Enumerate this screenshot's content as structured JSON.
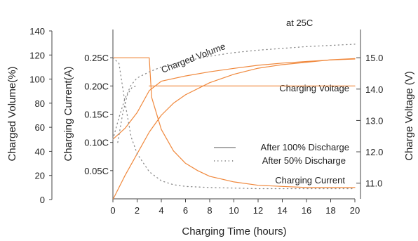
{
  "chart_data": {
    "type": "line",
    "annotation_text": "at 25C",
    "x_axis": {
      "label": "Charging Time (hours)",
      "ticks": [
        0,
        2,
        4,
        6,
        8,
        10,
        12,
        14,
        16,
        18,
        20
      ],
      "range": [
        0,
        20
      ]
    },
    "y_axes": {
      "charged_volume": {
        "label": "Charged Volume(%)",
        "ticks": [
          0,
          20,
          40,
          60,
          80,
          100,
          120,
          140
        ],
        "range": [
          0,
          140
        ]
      },
      "charging_current": {
        "label": "Charging Current(A)",
        "ticks": [
          "0.05C",
          "0.10C",
          "0.15C",
          "0.20C",
          "0.25C"
        ],
        "tick_values": [
          0.05,
          0.1,
          0.15,
          0.2,
          0.25
        ],
        "range": [
          0,
          0.3
        ]
      },
      "charge_voltage": {
        "label": "Charge Voltage (V)",
        "ticks": [
          "11.0",
          "12.0",
          "13.0",
          "14.0",
          "15.0"
        ],
        "tick_values": [
          11.0,
          12.0,
          13.0,
          14.0,
          15.0
        ],
        "range": [
          10.5,
          15.9
        ]
      }
    },
    "curve_labels": {
      "volume": "Charged Volume",
      "voltage": "Charging Voltage",
      "current": "Charging Current"
    },
    "legend": {
      "placement": "lower-right",
      "entries": [
        "After 100% Discharge",
        "After 50% Discharge"
      ]
    },
    "colors": {
      "series": "#f0883c",
      "dotted": "#8a8a8a",
      "axis": "#444444"
    },
    "series": [
      {
        "name": "After 100% Discharge",
        "quantity": "Charged Volume",
        "axis": "charged_volume",
        "style": "solid",
        "x": [
          0,
          1,
          2,
          3,
          4,
          5,
          6,
          8,
          10,
          12,
          14,
          16,
          18,
          20
        ],
        "y": [
          0,
          20,
          38,
          56,
          70,
          80,
          87,
          97,
          104,
          109,
          112,
          114,
          116,
          117
        ]
      },
      {
        "name": "After 100% Discharge",
        "quantity": "Charging Voltage",
        "axis": "charge_voltage",
        "style": "solid",
        "x": [
          0,
          1,
          2,
          3,
          4,
          6,
          8,
          10,
          12,
          14,
          16,
          18,
          20
        ],
        "y": [
          12.4,
          12.75,
          13.25,
          13.95,
          14.25,
          14.42,
          14.55,
          14.66,
          14.76,
          14.83,
          14.88,
          14.93,
          14.96
        ]
      },
      {
        "name": "After 100% Discharge",
        "quantity": "Charging Current",
        "axis": "charging_current",
        "style": "solid",
        "x": [
          0,
          3,
          3.2,
          4,
          5,
          6,
          7,
          8,
          10,
          12,
          14,
          16,
          18,
          20
        ],
        "y": [
          0.25,
          0.25,
          0.18,
          0.123,
          0.085,
          0.063,
          0.05,
          0.04,
          0.03,
          0.024,
          0.022,
          0.02,
          0.02,
          0.02
        ]
      },
      {
        "name": "After 100% Discharge",
        "quantity": "Charging Voltage (limit)",
        "axis": "charging_current",
        "style": "solid",
        "x": [
          3,
          20
        ],
        "y": [
          0.2,
          0.2
        ]
      },
      {
        "name": "After 50% Discharge",
        "quantity": "Charged Volume",
        "axis": "charged_volume",
        "style": "dotted",
        "x": [
          0,
          0.5,
          1,
          1.5,
          2,
          3,
          4,
          6,
          8,
          10,
          12,
          14,
          16,
          18,
          20
        ],
        "y": [
          50,
          68,
          84,
          95,
          101,
          106,
          110,
          115,
          119,
          122,
          124,
          125.5,
          127,
          128,
          129
        ]
      },
      {
        "name": "After 50% Discharge",
        "quantity": "Charging Current",
        "axis": "charging_current",
        "style": "dotted",
        "x": [
          0,
          0.5,
          1,
          1.5,
          2,
          3,
          4,
          5,
          6,
          8,
          10,
          12,
          14,
          16,
          18,
          20
        ],
        "y": [
          0.25,
          0.24,
          0.17,
          0.11,
          0.08,
          0.048,
          0.032,
          0.025,
          0.022,
          0.02,
          0.019,
          0.018,
          0.018,
          0.018,
          0.018,
          0.018
        ]
      },
      {
        "name": "After 50% Discharge",
        "quantity": "Charging Voltage",
        "axis": "charging_current",
        "style": "dotted",
        "x": [
          0.4,
          0.8,
          1.2,
          1.6,
          2.0
        ],
        "y": [
          0.1,
          0.15,
          0.185,
          0.198,
          0.2
        ]
      }
    ]
  }
}
